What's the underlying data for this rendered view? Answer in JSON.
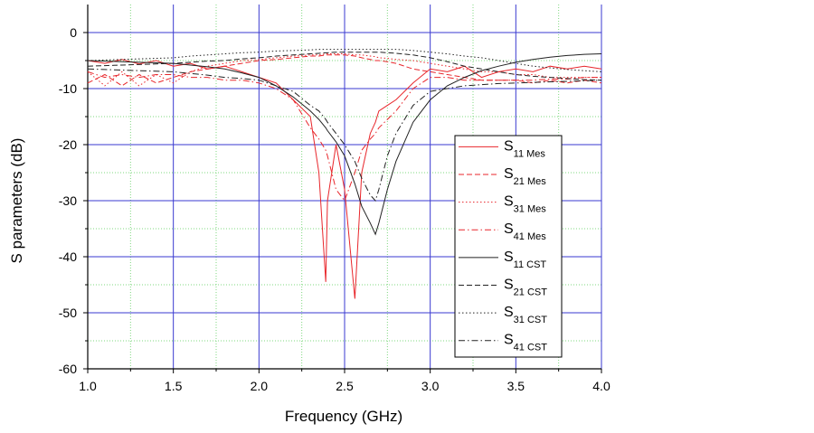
{
  "chart_data": {
    "type": "line",
    "xlabel": "Frequency (GHz)",
    "ylabel": "S parameters (dB)",
    "xlim": [
      1,
      4
    ],
    "ylim": [
      -60,
      5
    ],
    "xticks": [
      {
        "value": 1,
        "label": "1.0"
      },
      1.5,
      {
        "value": 2,
        "label": "2.0"
      },
      2.5,
      {
        "value": 3,
        "label": "3.0"
      },
      3.5,
      {
        "value": 4,
        "label": "4.0"
      }
    ],
    "yticks": [
      0,
      -10,
      -20,
      -30,
      -40,
      -50,
      -60
    ],
    "x_minor_ticks": [
      1.25,
      1.75,
      2.25,
      2.75,
      3.25,
      3.75
    ],
    "y_minor_ticks": [
      -5,
      -15,
      -25,
      -35,
      -45,
      -55
    ],
    "grid": true,
    "legend": "right",
    "x": [
      1.0,
      1.1,
      1.2,
      1.3,
      1.4,
      1.5,
      1.6,
      1.7,
      1.8,
      1.9,
      2.0,
      2.1,
      2.2,
      2.3,
      2.35,
      2.39,
      2.4,
      2.45,
      2.5,
      2.56,
      2.6,
      2.65,
      2.68,
      2.7,
      2.75,
      2.8,
      2.9,
      3.0,
      3.1,
      3.2,
      3.3,
      3.4,
      3.5,
      3.6,
      3.7,
      3.8,
      3.9,
      4.0
    ],
    "series": [
      {
        "name": "S11 Mes",
        "color": "#e8262b",
        "style": "solid",
        "values": [
          -5,
          -5.5,
          -4.8,
          -5.6,
          -5,
          -6,
          -5.5,
          -6.5,
          -6,
          -7,
          -8,
          -9,
          -12,
          -15,
          -25,
          -44.5,
          -30,
          -20,
          -28,
          -47.5,
          -25,
          -18,
          -16,
          -14,
          -13,
          -12,
          -9,
          -6.5,
          -7,
          -6,
          -8,
          -7,
          -6.5,
          -7,
          -6,
          -6.5,
          -6,
          -6.5
        ]
      },
      {
        "name": "S21 Mes",
        "color": "#e8262b",
        "style": "dash",
        "values": [
          -9,
          -7.5,
          -9.5,
          -7.5,
          -9,
          -8,
          -7,
          -6.5,
          -6,
          -5.5,
          -5,
          -4.8,
          -4.5,
          -4.2,
          -4.2,
          -4,
          -4,
          -4,
          -4,
          -4.2,
          -4.5,
          -4.8,
          -5,
          -5,
          -5.2,
          -5.5,
          -6.5,
          -7,
          -7.5,
          -8,
          -8.5,
          -8.5,
          -8.5,
          -9,
          -8.5,
          -9,
          -8.5,
          -9
        ]
      },
      {
        "name": "S31 Mes",
        "color": "#e8262b",
        "style": "dot",
        "values": [
          -7,
          -9.5,
          -7,
          -9.5,
          -7.5,
          -9,
          -7,
          -6,
          -5.5,
          -5,
          -4.8,
          -4.5,
          -4.2,
          -4,
          -4,
          -3.8,
          -3.8,
          -3.8,
          -3.8,
          -4,
          -4,
          -4.2,
          -4.3,
          -4.5,
          -4.6,
          -4.8,
          -5,
          -5.5,
          -6,
          -6.5,
          -7,
          -7,
          -7.5,
          -7.5,
          -8,
          -8,
          -8,
          -8
        ]
      },
      {
        "name": "S41 Mes",
        "color": "#e8262b",
        "style": "dashdot",
        "values": [
          -7,
          -8,
          -7.5,
          -8,
          -7.5,
          -7.5,
          -8,
          -8,
          -8.5,
          -8.5,
          -9,
          -10,
          -12,
          -17,
          -19,
          -21,
          -22,
          -28,
          -30,
          -25,
          -21,
          -19,
          -18,
          -17,
          -15.5,
          -14,
          -10,
          -8,
          -8,
          -8.5,
          -8.5,
          -8.5,
          -8.5,
          -8.5,
          -8.3,
          -8.3,
          -8,
          -8
        ]
      },
      {
        "name": "S11 CST",
        "color": "#222222",
        "style": "solid",
        "values": [
          -5,
          -5.1,
          -5.2,
          -5.3,
          -5.4,
          -5.5,
          -5.8,
          -6.1,
          -6.5,
          -7.2,
          -8,
          -9.5,
          -11.5,
          -14,
          -15.5,
          -17,
          -17.5,
          -19.5,
          -22,
          -27,
          -31,
          -34,
          -36,
          -34,
          -28,
          -23,
          -16,
          -12,
          -9.5,
          -8,
          -6.8,
          -6,
          -5.3,
          -4.8,
          -4.4,
          -4.1,
          -3.9,
          -3.8
        ]
      },
      {
        "name": "S21 CST",
        "color": "#222222",
        "style": "dash",
        "values": [
          -6,
          -5.9,
          -5.8,
          -5.7,
          -5.6,
          -5.5,
          -5.3,
          -5.1,
          -5,
          -4.7,
          -4.5,
          -4.2,
          -4,
          -3.8,
          -3.7,
          -3.6,
          -3.6,
          -3.5,
          -3.5,
          -3.5,
          -3.5,
          -3.5,
          -3.5,
          -3.5,
          -3.6,
          -3.7,
          -4,
          -4.5,
          -5.2,
          -6,
          -6.5,
          -7,
          -7.5,
          -7.8,
          -8,
          -8.2,
          -8.4,
          -8.5
        ]
      },
      {
        "name": "S31 CST",
        "color": "#222222",
        "style": "dot",
        "values": [
          -5,
          -4.9,
          -4.8,
          -4.7,
          -4.6,
          -4.5,
          -4.2,
          -4,
          -3.8,
          -3.6,
          -3.5,
          -3.3,
          -3.2,
          -3.1,
          -3,
          -3,
          -3,
          -3,
          -3,
          -3,
          -3,
          -3,
          -3,
          -3,
          -3,
          -3,
          -3.2,
          -3.5,
          -3.8,
          -4.2,
          -4.5,
          -5,
          -5.5,
          -6,
          -6.3,
          -6.6,
          -6.8,
          -7
        ]
      },
      {
        "name": "S41 CST",
        "color": "#222222",
        "style": "dashdot",
        "values": [
          -6.5,
          -6.6,
          -6.7,
          -6.8,
          -6.9,
          -7,
          -7.3,
          -7.6,
          -8,
          -8.2,
          -8.5,
          -9.5,
          -10.5,
          -13,
          -14,
          -15.5,
          -16,
          -18,
          -20,
          -23,
          -26,
          -29,
          -30,
          -28,
          -22,
          -18,
          -13,
          -10.5,
          -10,
          -9.5,
          -9.3,
          -9.1,
          -9,
          -8.9,
          -8.8,
          -8.7,
          -8.6,
          -8.5
        ]
      }
    ]
  }
}
